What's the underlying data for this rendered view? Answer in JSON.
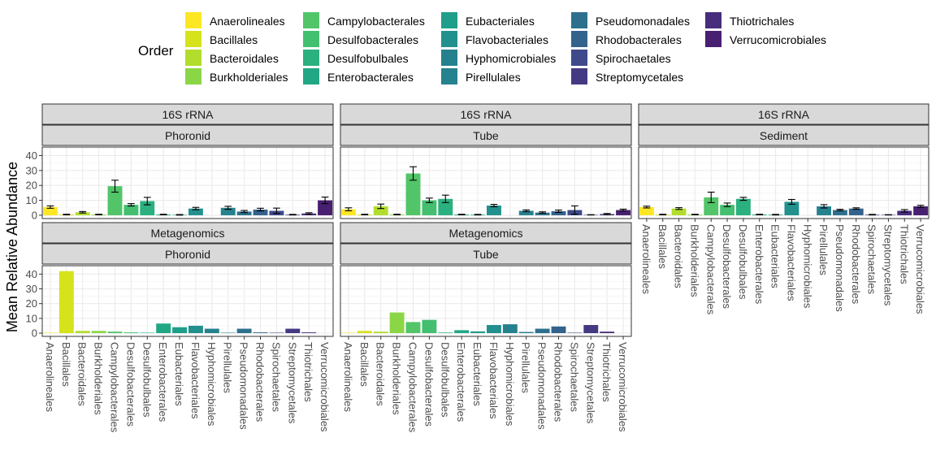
{
  "chart_data": {
    "type": "bar",
    "ylabel": "Mean Relative Abundance",
    "legend_title": "Order",
    "legend_position": "top",
    "grid": true,
    "ylim": [
      0,
      45
    ],
    "yticks": [
      0,
      10,
      20,
      30,
      40
    ],
    "categories": [
      "Anaerolineales",
      "Bacillales",
      "Bacteroidales",
      "Burkholderiales",
      "Campylobacterales",
      "Desulfobacterales",
      "Desulfobulbales",
      "Enterobacterales",
      "Eubacteriales",
      "Flavobacteriales",
      "Hyphomicrobiales",
      "Pirellulales",
      "Pseudomonadales",
      "Rhodobacterales",
      "Spirochaetales",
      "Streptomycetales",
      "Thiotrichales",
      "Verrucomicrobiales"
    ],
    "colors": [
      "#FDE725",
      "#D6E21A",
      "#B2DD2D",
      "#8BD646",
      "#52C569",
      "#44BF70",
      "#2BB07F",
      "#22A785",
      "#1F9E89",
      "#22908D",
      "#25818E",
      "#26828E",
      "#2D708E",
      "#33638D",
      "#3E4A89",
      "#443A83",
      "#472D7B",
      "#481F71"
    ],
    "panels": [
      {
        "method": "16S rRNA",
        "sample": "Phoronid",
        "values": [
          5.5,
          0.5,
          2,
          0.5,
          19.5,
          7,
          9.5,
          0.5,
          0.3,
          4.5,
          0,
          5,
          2.5,
          3.8,
          3,
          0.4,
          1.2,
          10
        ],
        "errors": [
          0.8,
          0.2,
          0.5,
          0.2,
          4,
          0.8,
          2.5,
          0.2,
          0.2,
          0.8,
          0,
          1,
          0.7,
          0.9,
          1.8,
          0.2,
          0.5,
          2.2
        ]
      },
      {
        "method": "16S rRNA",
        "sample": "Tube",
        "values": [
          4,
          0.5,
          6,
          0.5,
          28,
          10,
          11,
          0.5,
          0.4,
          6.5,
          0,
          3,
          1.8,
          2.7,
          3.5,
          0.3,
          0.8,
          3.5
        ],
        "errors": [
          1,
          0.2,
          1.5,
          0.2,
          4.5,
          1.5,
          2.5,
          0.2,
          0.2,
          0.8,
          0,
          0.6,
          0.5,
          0.8,
          2.8,
          0.1,
          0.4,
          0.6
        ]
      },
      {
        "method": "16S rRNA",
        "sample": "Sediment",
        "values": [
          5.5,
          0.5,
          4.5,
          0.5,
          12,
          7,
          11,
          0.5,
          0.4,
          9,
          0,
          6,
          3.5,
          4.5,
          0.4,
          0.3,
          3,
          6
        ],
        "errors": [
          0.6,
          0.2,
          0.6,
          0.2,
          3.5,
          1.2,
          1,
          0.2,
          0.2,
          1.6,
          0,
          1.1,
          0.5,
          0.5,
          0.2,
          0.1,
          0.8,
          0.7
        ]
      },
      {
        "method": "Metagenomics",
        "sample": "Phoronid",
        "values": [
          0.3,
          42,
          1.5,
          1.5,
          1,
          0.5,
          0.3,
          6.5,
          4,
          5,
          3,
          0.3,
          3,
          0.5,
          0.3,
          3,
          0.5,
          0
        ],
        "errors": null
      },
      {
        "method": "Metagenomics",
        "sample": "Tube",
        "values": [
          0.3,
          1.5,
          1,
          14,
          7.5,
          9,
          0.4,
          2,
          1.2,
          5.5,
          6,
          0.8,
          3,
          4.5,
          0.3,
          5.5,
          1,
          0
        ],
        "errors": null
      }
    ]
  }
}
